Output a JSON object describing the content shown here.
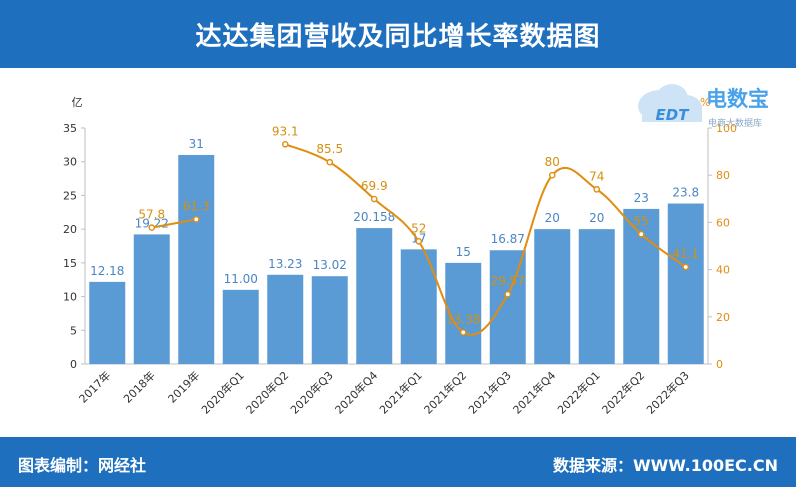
{
  "header": {
    "title": "达达集团营收及同比增长率数据图"
  },
  "footer": {
    "editor": "图表编制：网经社",
    "source": "数据来源：WWW.100EC.CN"
  },
  "logo": {
    "brand": "电数宝",
    "sub": "电商大数据库",
    "mark": "EDT"
  },
  "colors": {
    "bar": "#5b9bd5",
    "bar_label": "#4a86c5",
    "line": "#e08d10",
    "line_label": "#d4900f",
    "header_bg": "#1f6fbf"
  },
  "chart_data": {
    "type": "bar",
    "title": "达达集团营收及同比增长率数据图",
    "categories": [
      "2017年",
      "2018年",
      "2019年",
      "2020年Q1",
      "2020年Q2",
      "2020年Q3",
      "2020年Q4",
      "2021年Q1",
      "2021年Q2",
      "2021年Q3",
      "2021年Q4",
      "2022年Q1",
      "2022年Q2",
      "2022年Q3"
    ],
    "series": [
      {
        "type": "bar",
        "axis": "left",
        "values": [
          12.18,
          19.22,
          31,
          11.0,
          13.23,
          13.02,
          20.158,
          17,
          15,
          16.87,
          20,
          20,
          23,
          23.8
        ],
        "labels": [
          "12.18",
          "19.22",
          "31",
          "11.00",
          "13.23",
          "13.02",
          "20.158",
          "17",
          "15",
          "16.87",
          "20",
          "20",
          "23",
          "23.8"
        ]
      },
      {
        "type": "line",
        "axis": "right",
        "values": [
          null,
          57.8,
          61.3,
          null,
          93.1,
          85.5,
          69.9,
          52,
          13.38,
          29.57,
          80,
          74,
          55,
          41.1
        ],
        "labels": [
          null,
          "57.8",
          "61.3",
          null,
          "93.1",
          "85.5",
          "69.9",
          "52",
          "13.38",
          "29.57",
          "80",
          "74",
          "55",
          "41.1"
        ]
      }
    ],
    "yleft": {
      "unit": "亿",
      "ylim": [
        0,
        35
      ],
      "ticks": [
        0,
        5,
        10,
        15,
        20,
        25,
        30,
        35
      ]
    },
    "yright": {
      "unit": "%",
      "ylim": [
        0,
        100
      ],
      "ticks": [
        0,
        20,
        40,
        60,
        80,
        100
      ]
    },
    "grid": false,
    "legend": "none"
  }
}
